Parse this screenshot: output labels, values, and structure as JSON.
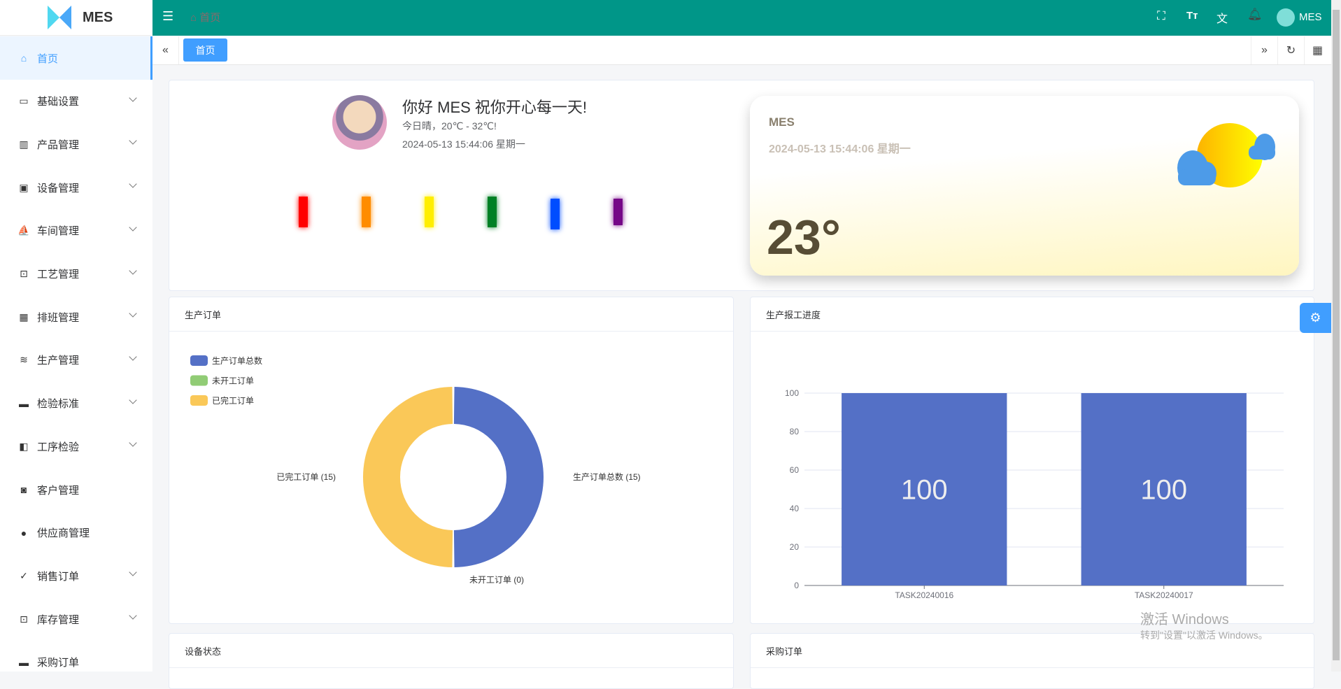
{
  "app": {
    "logo_text": "MES",
    "brand_color": "#009688",
    "accent": "#409eff"
  },
  "header": {
    "breadcrumb": "首页",
    "user": "MES",
    "icons": [
      "fullscreen-icon",
      "font-size-icon",
      "translate-icon",
      "bell-icon"
    ]
  },
  "sidebar": {
    "items": [
      {
        "label": "首页",
        "icon": "⌂",
        "active": true,
        "expandable": false
      },
      {
        "label": "基础设置",
        "icon": "▭",
        "expandable": true
      },
      {
        "label": "产品管理",
        "icon": "▥",
        "expandable": true
      },
      {
        "label": "设备管理",
        "icon": "▣",
        "expandable": true
      },
      {
        "label": "车间管理",
        "icon": "⛵",
        "expandable": true
      },
      {
        "label": "工艺管理",
        "icon": "⊡",
        "expandable": true
      },
      {
        "label": "排班管理",
        "icon": "▦",
        "expandable": true
      },
      {
        "label": "生产管理",
        "icon": "≋",
        "expandable": true
      },
      {
        "label": "检验标准",
        "icon": "▬",
        "expandable": true
      },
      {
        "label": "工序检验",
        "icon": "◧",
        "expandable": true
      },
      {
        "label": "客户管理",
        "icon": "◙",
        "expandable": false
      },
      {
        "label": "供应商管理",
        "icon": "●",
        "expandable": false
      },
      {
        "label": "销售订单",
        "icon": "✓",
        "expandable": true
      },
      {
        "label": "库存管理",
        "icon": "⊡",
        "expandable": true
      },
      {
        "label": "采购订单",
        "icon": "▬",
        "expandable": false
      }
    ]
  },
  "tabs": [
    {
      "label": "首页",
      "active": true
    }
  ],
  "welcome": {
    "greeting": "你好 MES 祝你开心每一天!",
    "weather": "今日晴，20℃ - 32℃!",
    "datetime": "2024-05-13 15:44:06 星期一",
    "bar_colors": [
      "#ff0000",
      "#ff8c00",
      "#ffee00",
      "#008025",
      "#004dff",
      "#750787"
    ]
  },
  "weather_card": {
    "name": "MES",
    "datetime": "2024-05-13 15:44:06 星期一",
    "temperature": "23°"
  },
  "panels": {
    "orders": "生产订单",
    "progress": "生产报工进度",
    "equipment": "设备状态",
    "purchase": "采购订单"
  },
  "chart_data": [
    {
      "type": "pie",
      "title": "生产订单",
      "legend_position": "top-left",
      "slices": [
        {
          "name": "生产订单总数",
          "value": 15,
          "color": "#5470c6",
          "label": "生产订单总数 (15)"
        },
        {
          "name": "未开工订单",
          "value": 0,
          "color": "#91cc75",
          "label": "未开工订单 (0)"
        },
        {
          "name": "已完工订单",
          "value": 15,
          "color": "#fac858",
          "label": "已完工订单 (15)"
        }
      ]
    },
    {
      "type": "bar",
      "title": "生产报工进度",
      "categories": [
        "TASK20240016",
        "TASK20240017"
      ],
      "values": [
        100,
        100
      ],
      "data_labels": [
        "100",
        "100"
      ],
      "ylim": [
        0,
        100
      ],
      "yticks": [
        "0",
        "20",
        "40",
        "60",
        "80",
        "100"
      ],
      "grid": true,
      "color": "#5470c6"
    }
  ],
  "watermark": {
    "line1": "激活 Windows",
    "line2": "转到\"设置\"以激活 Windows。"
  }
}
